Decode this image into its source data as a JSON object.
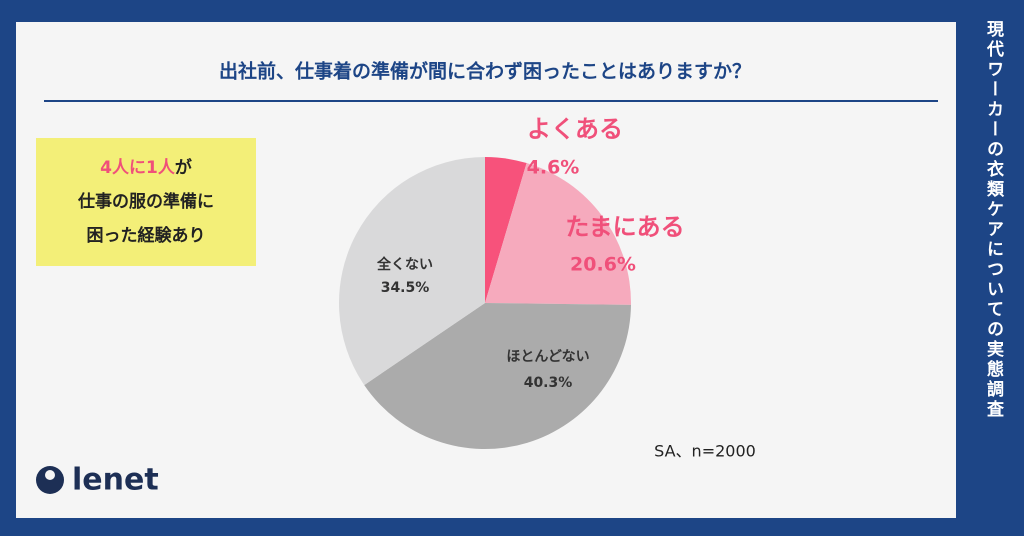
{
  "chart_data": {
    "type": "pie",
    "title": "出社前、仕事着の準備が間に合わず困ったことはありますか？",
    "categories": [
      "よくある",
      "たまにある",
      "ほとんどない",
      "全くない"
    ],
    "values": [
      4.6,
      20.6,
      40.3,
      34.5
    ],
    "value_labels": [
      "4.6%",
      "20.6%",
      "40.3%",
      "34.5%"
    ],
    "colors": [
      "#f7527b",
      "#f6aabd",
      "#ababab",
      "#d9d9da"
    ],
    "note": "SA、n=2000"
  },
  "callout": [
    "4人に1人",
    "が",
    "仕事の服の準備に",
    "困った経験あり"
  ],
  "side_title": "現代ワーカーの衣類ケアについての実態調査",
  "brand": "lenet"
}
